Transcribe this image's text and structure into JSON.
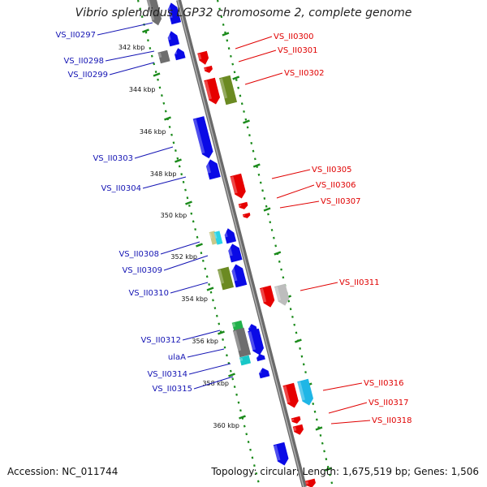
{
  "title": "Vibrio splendidus LGP32 chromosome 2, complete genome",
  "footer": {
    "accession": "Accession: NC_011744",
    "summary": "Topology: circular; Length: 1,675,519 bp; Genes: 1,506"
  },
  "colors": {
    "backbone": "#8c8c8c",
    "ruler": "#1a8a1a",
    "forward_label": "#e00000",
    "reverse_label": "#1414b4",
    "gene_blue": "#0a0ae6",
    "gene_red": "#e60000",
    "gene_olive": "#6b8a22",
    "gene_gray": "#6e6e6e",
    "gene_lightgray": "#bdbdbd",
    "gene_cyan": "#1fb6e6",
    "gene_green": "#22b04a"
  },
  "kbp_ticks": [
    "342 kbp",
    "344 kbp",
    "346 kbp",
    "348 kbp",
    "350 kbp",
    "352 kbp",
    "354 kbp",
    "356 kbp",
    "358 kbp",
    "360 kbp"
  ],
  "reverse_genes": [
    "VS_II0297",
    "VS_II0298",
    "VS_II0299",
    "VS_II0303",
    "VS_II0304",
    "VS_II0308",
    "VS_II0309",
    "VS_II0310",
    "VS_II0312",
    "ulaA",
    "VS_II0314",
    "VS_II0315"
  ],
  "forward_genes": [
    "VS_II0300",
    "VS_II0301",
    "VS_II0302",
    "VS_II0305",
    "VS_II0306",
    "VS_II0307",
    "VS_II0311",
    "VS_II0316",
    "VS_II0317",
    "VS_II0318"
  ]
}
